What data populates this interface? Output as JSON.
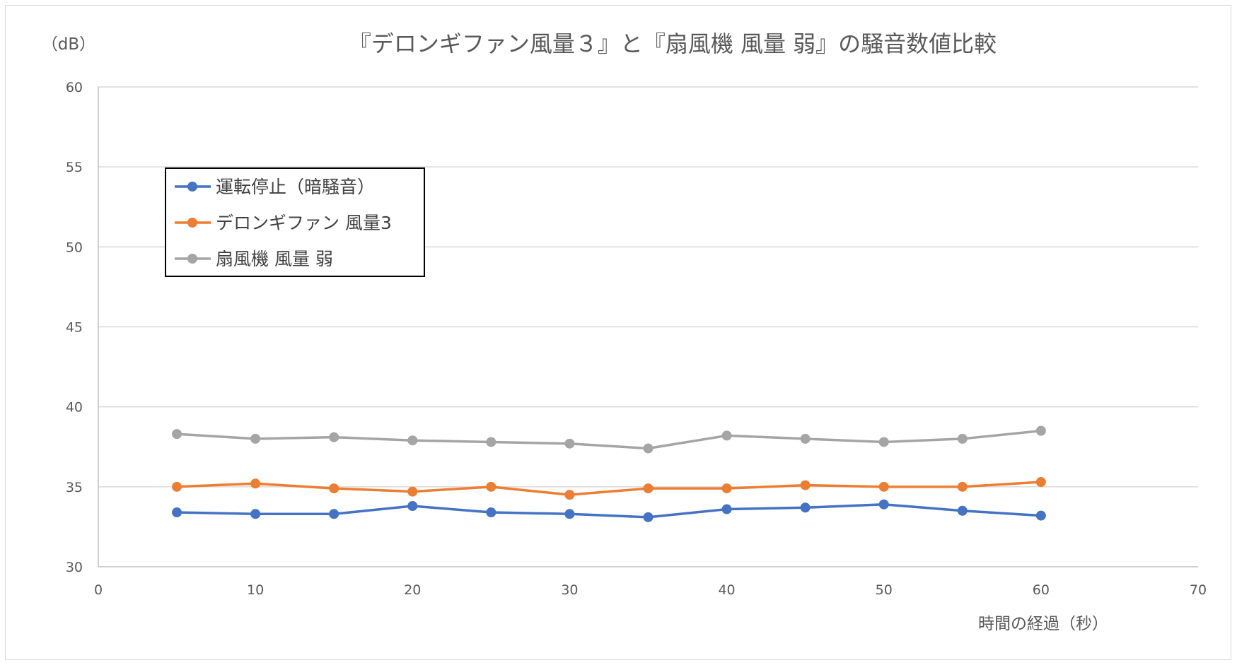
{
  "chart_data": {
    "type": "line",
    "title": "『デロンギファン風量３』と『扇風機 風量 弱』の騒音数値比較",
    "xlabel": "時間の経過（秒）",
    "ylabel": "（dB）",
    "xlim": [
      0,
      70
    ],
    "ylim": [
      30,
      60
    ],
    "x_ticks": [
      0,
      10,
      20,
      30,
      40,
      50,
      60,
      70
    ],
    "y_ticks": [
      30,
      35,
      40,
      45,
      50,
      55,
      60
    ],
    "grid": "horizontal",
    "legend": "top-left",
    "x": [
      5,
      10,
      15,
      20,
      25,
      30,
      35,
      40,
      45,
      50,
      55,
      60
    ],
    "series": [
      {
        "name": "運転停止（暗騒音）",
        "color": "#4472c4",
        "values": [
          33.4,
          33.3,
          33.3,
          33.8,
          33.4,
          33.3,
          33.1,
          33.6,
          33.7,
          33.9,
          33.5,
          33.2
        ]
      },
      {
        "name": "デロンギファン 風量3",
        "color": "#ed7d31",
        "values": [
          35.0,
          35.2,
          34.9,
          34.7,
          35.0,
          34.5,
          34.9,
          34.9,
          35.1,
          35.0,
          35.0,
          35.3
        ]
      },
      {
        "name": "扇風機 風量 弱",
        "color": "#a5a5a5",
        "values": [
          38.3,
          38.0,
          38.1,
          37.9,
          37.8,
          37.7,
          37.4,
          38.2,
          38.0,
          37.8,
          38.0,
          38.5
        ]
      }
    ]
  }
}
